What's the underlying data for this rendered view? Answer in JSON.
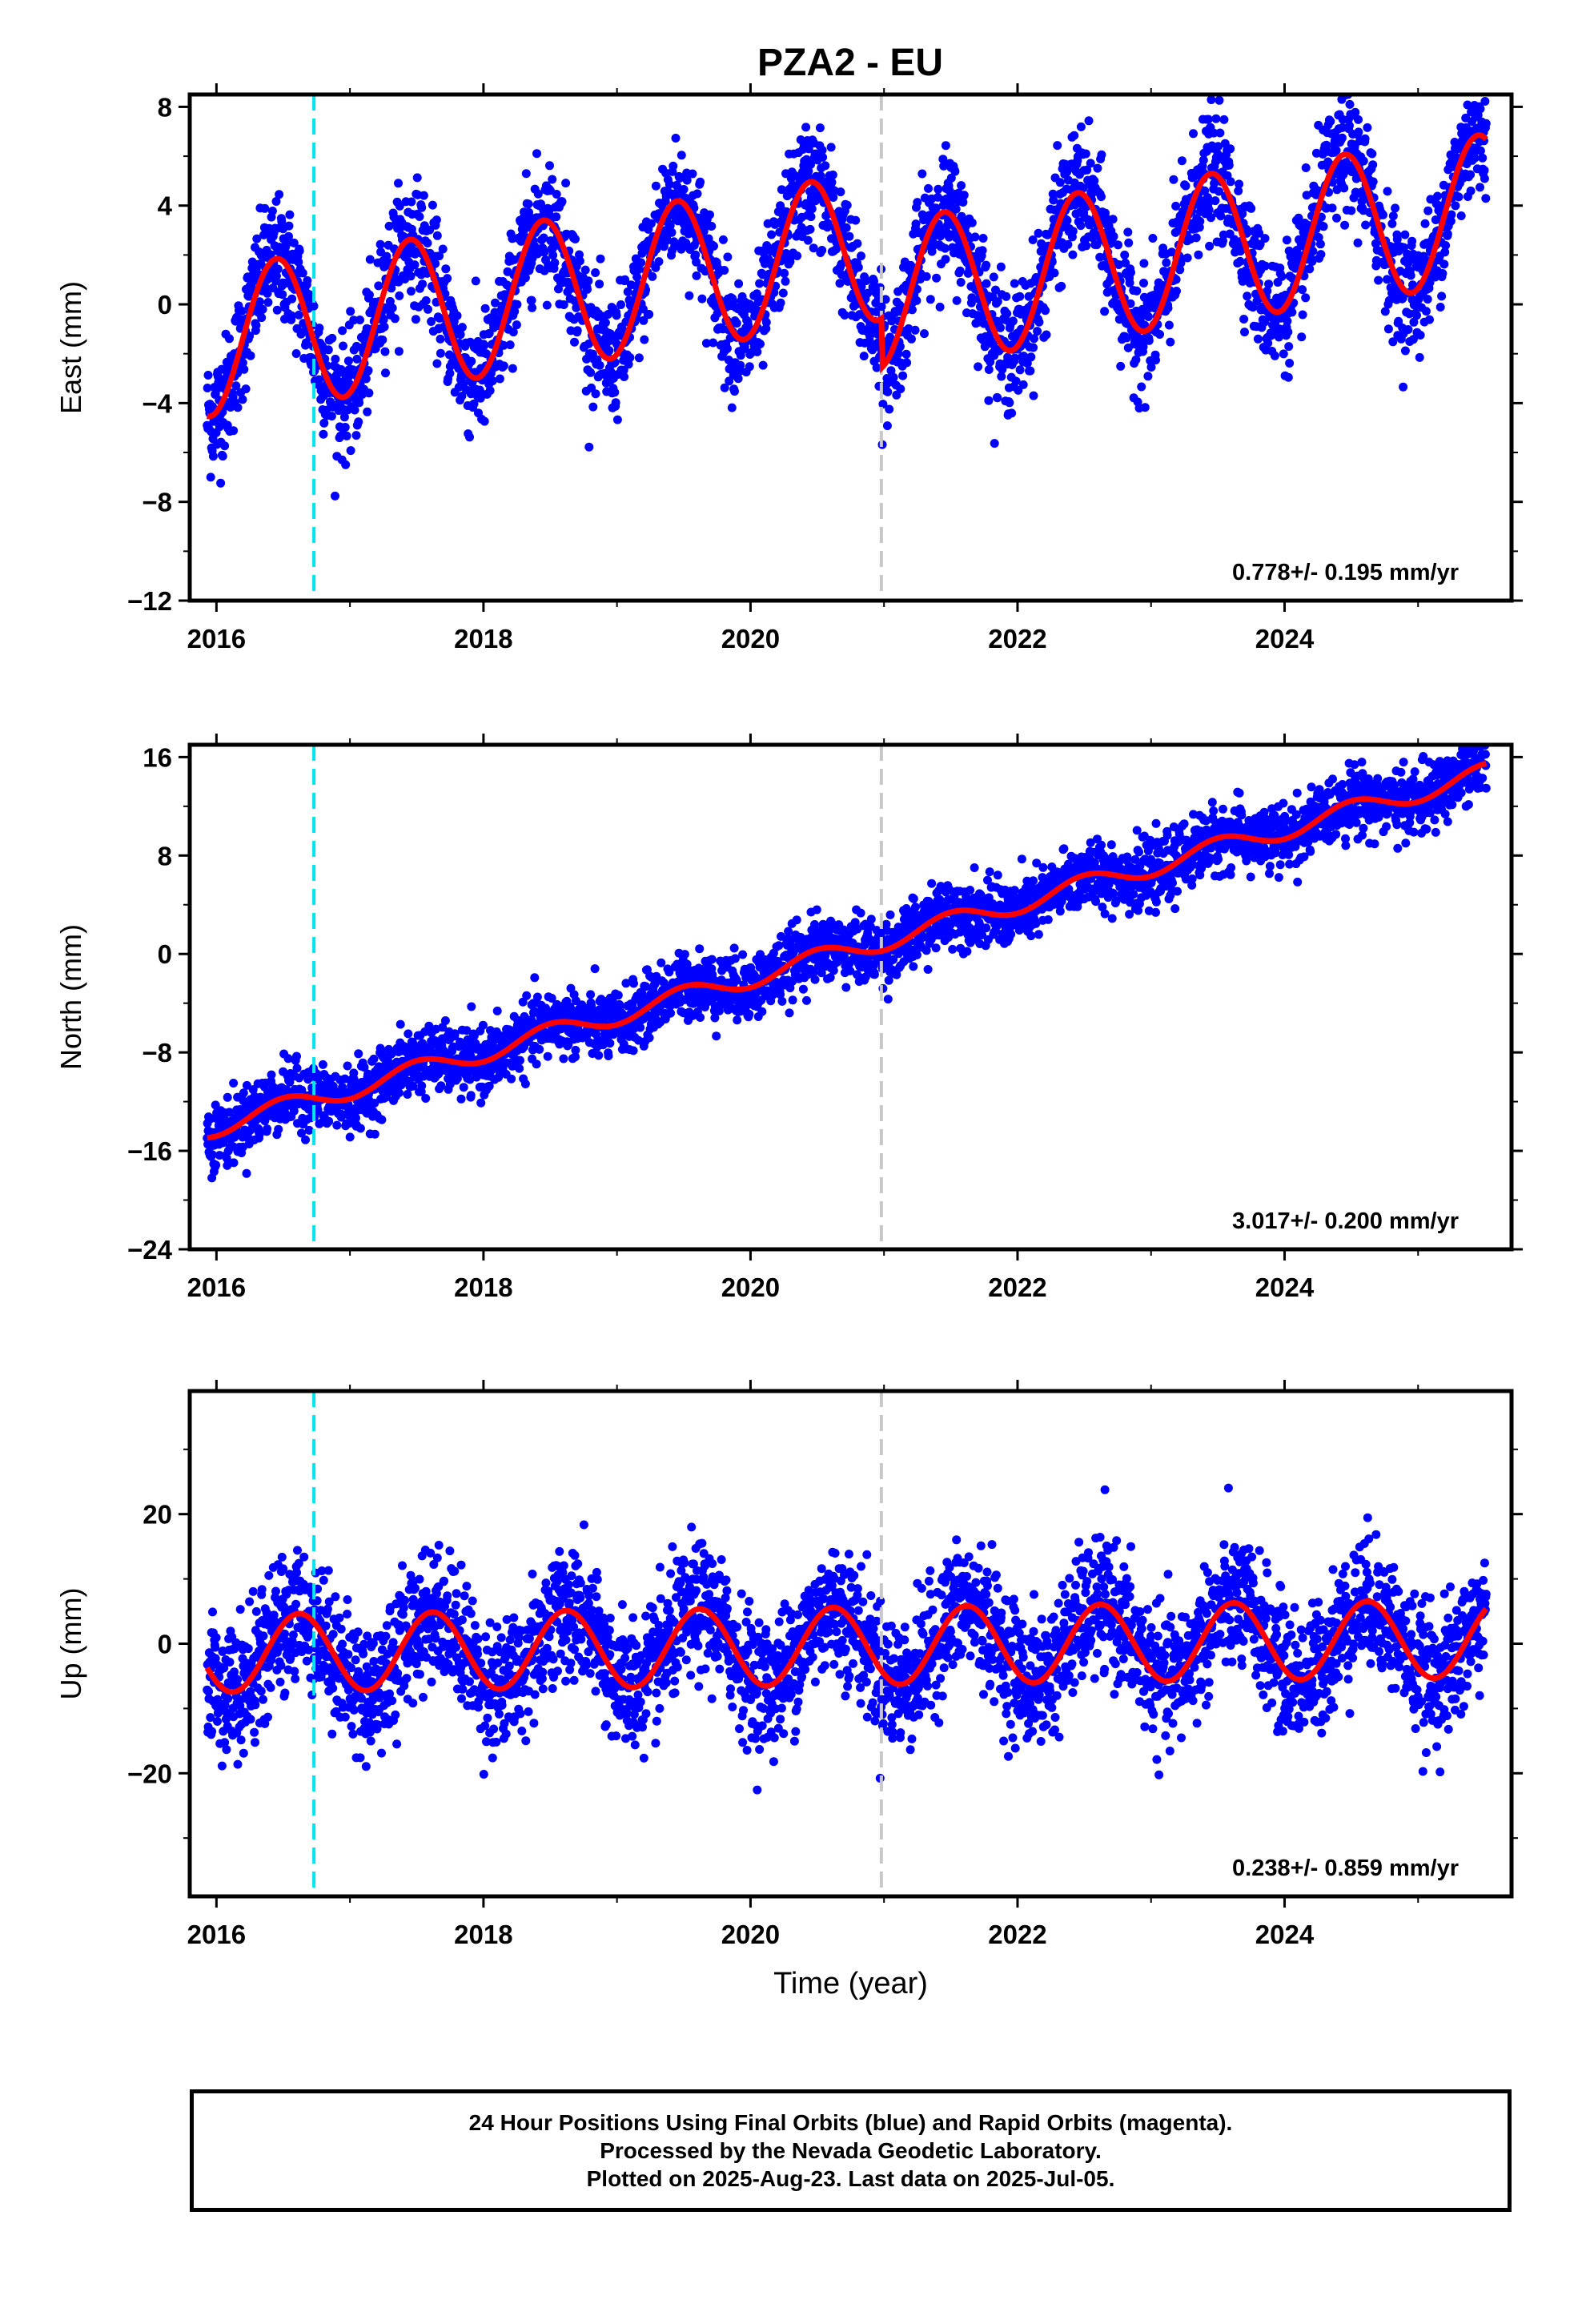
{
  "title": "PZA2 - EU",
  "chart_data": [
    {
      "type": "scatter",
      "ylabel": "East (mm)",
      "xlabel": "",
      "xlim": [
        2015.8,
        2025.7
      ],
      "ylim": [
        -12,
        8.5
      ],
      "yticks": [
        -12,
        -8,
        -4,
        0,
        4,
        8
      ],
      "xticks": [
        2016,
        2018,
        2020,
        2022,
        2024
      ],
      "rate_label": "0.778+/- 0.195 mm/yr",
      "dashed_lines": [
        {
          "x": 2016.73,
          "color": "#00e5ee"
        },
        {
          "x": 2020.98,
          "color": "#c8c8c8"
        }
      ],
      "fit_model": {
        "rate": 0.778,
        "amplitude": 3.0,
        "peak_year_fraction": 0.45,
        "offset_at_2016": -1.5,
        "step_at": 2020.98,
        "step": -2.0
      },
      "scatter_sigma": 1.2,
      "series": [
        {
          "name": "Final Orbits",
          "role": "daily positions",
          "color": "#0000ff"
        },
        {
          "name": "Model fit",
          "role": "fit",
          "color": "#ff0000"
        }
      ]
    },
    {
      "type": "scatter",
      "ylabel": "North (mm)",
      "xlabel": "",
      "xlim": [
        2015.8,
        2025.7
      ],
      "ylim": [
        -24,
        17
      ],
      "yticks": [
        -24,
        -16,
        -8,
        0,
        8,
        16
      ],
      "xticks": [
        2016,
        2018,
        2020,
        2022,
        2024
      ],
      "rate_label": "3.017+/- 0.200 mm/yr",
      "dashed_lines": [
        {
          "x": 2016.73,
          "color": "#00e5ee"
        },
        {
          "x": 2020.98,
          "color": "#c8c8c8"
        }
      ],
      "fit_model": {
        "rate": 3.017,
        "amplitude": 0.8,
        "peak_year_fraction": 0.5,
        "offset_at_2016": -14.0,
        "step_at": 2020.98,
        "step": 0
      },
      "scatter_sigma": 1.3,
      "series": [
        {
          "name": "Final Orbits",
          "role": "daily positions",
          "color": "#0000ff"
        },
        {
          "name": "Model fit",
          "role": "fit",
          "color": "#ff0000"
        }
      ]
    },
    {
      "type": "scatter",
      "ylabel": "Up (mm)",
      "xlabel": "Time (year)",
      "xlim": [
        2015.8,
        2025.7
      ],
      "ylim": [
        -39,
        39
      ],
      "yticks": [
        -20,
        0,
        20
      ],
      "xticks": [
        2016,
        2018,
        2020,
        2022,
        2024
      ],
      "rate_label": "0.238+/- 0.859 mm/yr",
      "dashed_lines": [
        {
          "x": 2016.73,
          "color": "#00e5ee"
        },
        {
          "x": 2020.98,
          "color": "#c8c8c8"
        }
      ],
      "fit_model": {
        "rate": 0.238,
        "amplitude": 6.0,
        "peak_year_fraction": 0.62,
        "offset_at_2016": -1.5,
        "step_at": 2020.98,
        "step": 0
      },
      "scatter_sigma": 5.0,
      "series": [
        {
          "name": "Final Orbits",
          "role": "daily positions",
          "color": "#0000ff"
        },
        {
          "name": "Model fit",
          "role": "fit",
          "color": "#ff0000"
        }
      ]
    }
  ],
  "caption": {
    "line1": "24 Hour Positions Using Final Orbits (blue) and Rapid Orbits (magenta).",
    "line2": "Processed by the Nevada Geodetic Laboratory.",
    "line3": "Plotted on 2025-Aug-23. Last data on 2025-Jul-05."
  }
}
